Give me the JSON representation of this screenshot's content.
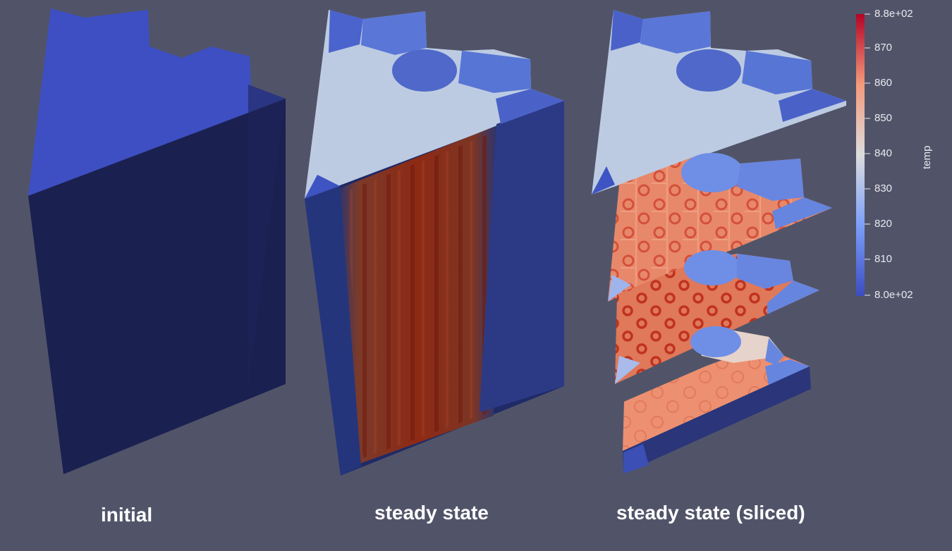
{
  "panels": [
    {
      "id": "initial",
      "caption": "initial"
    },
    {
      "id": "steady",
      "caption": "steady state"
    },
    {
      "id": "sliced",
      "caption": "steady state (sliced)"
    }
  ],
  "colorbar": {
    "title": "temp",
    "tick_labels": [
      "8.8e+02",
      "870",
      "860",
      "850",
      "840",
      "830",
      "820",
      "810",
      "8.0e+02"
    ],
    "min_color": "#3b4cc0",
    "mid_color": "#dddddd",
    "max_color": "#b40426"
  },
  "colors": {
    "background": "#515469",
    "cold_top": "#3d4fc4",
    "cold_side": "#1b2150",
    "steady_top": "#bccbe3",
    "hot_core": "#8a2010",
    "slice_hot": "#e5805f"
  }
}
